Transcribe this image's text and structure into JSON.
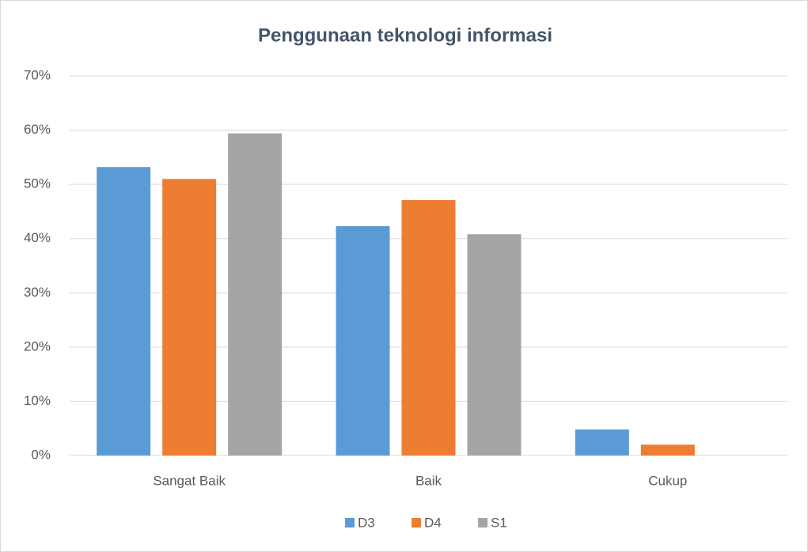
{
  "chart_data": {
    "type": "bar",
    "title": "Penggunaan teknologi informasi",
    "categories": [
      "Sangat Baik",
      "Baik",
      "Cukup"
    ],
    "series": [
      {
        "name": "D3",
        "color": "#5b9bd5",
        "values": [
          53.2,
          42.3,
          4.8
        ]
      },
      {
        "name": "D4",
        "color": "#ed7d31",
        "values": [
          51.0,
          47.1,
          2.0
        ]
      },
      {
        "name": "S1",
        "color": "#a5a5a5",
        "values": [
          59.4,
          40.8,
          0
        ]
      }
    ],
    "ylim": [
      0,
      70
    ],
    "yticks": [
      {
        "value": 0,
        "label": "0%"
      },
      {
        "value": 10,
        "label": "10%"
      },
      {
        "value": 20,
        "label": "20%"
      },
      {
        "value": 30,
        "label": "30%"
      },
      {
        "value": 40,
        "label": "40%"
      },
      {
        "value": 50,
        "label": "50%"
      },
      {
        "value": 60,
        "label": "60%"
      },
      {
        "value": 70,
        "label": "70%"
      }
    ],
    "grid": true,
    "legend": "bottom"
  }
}
